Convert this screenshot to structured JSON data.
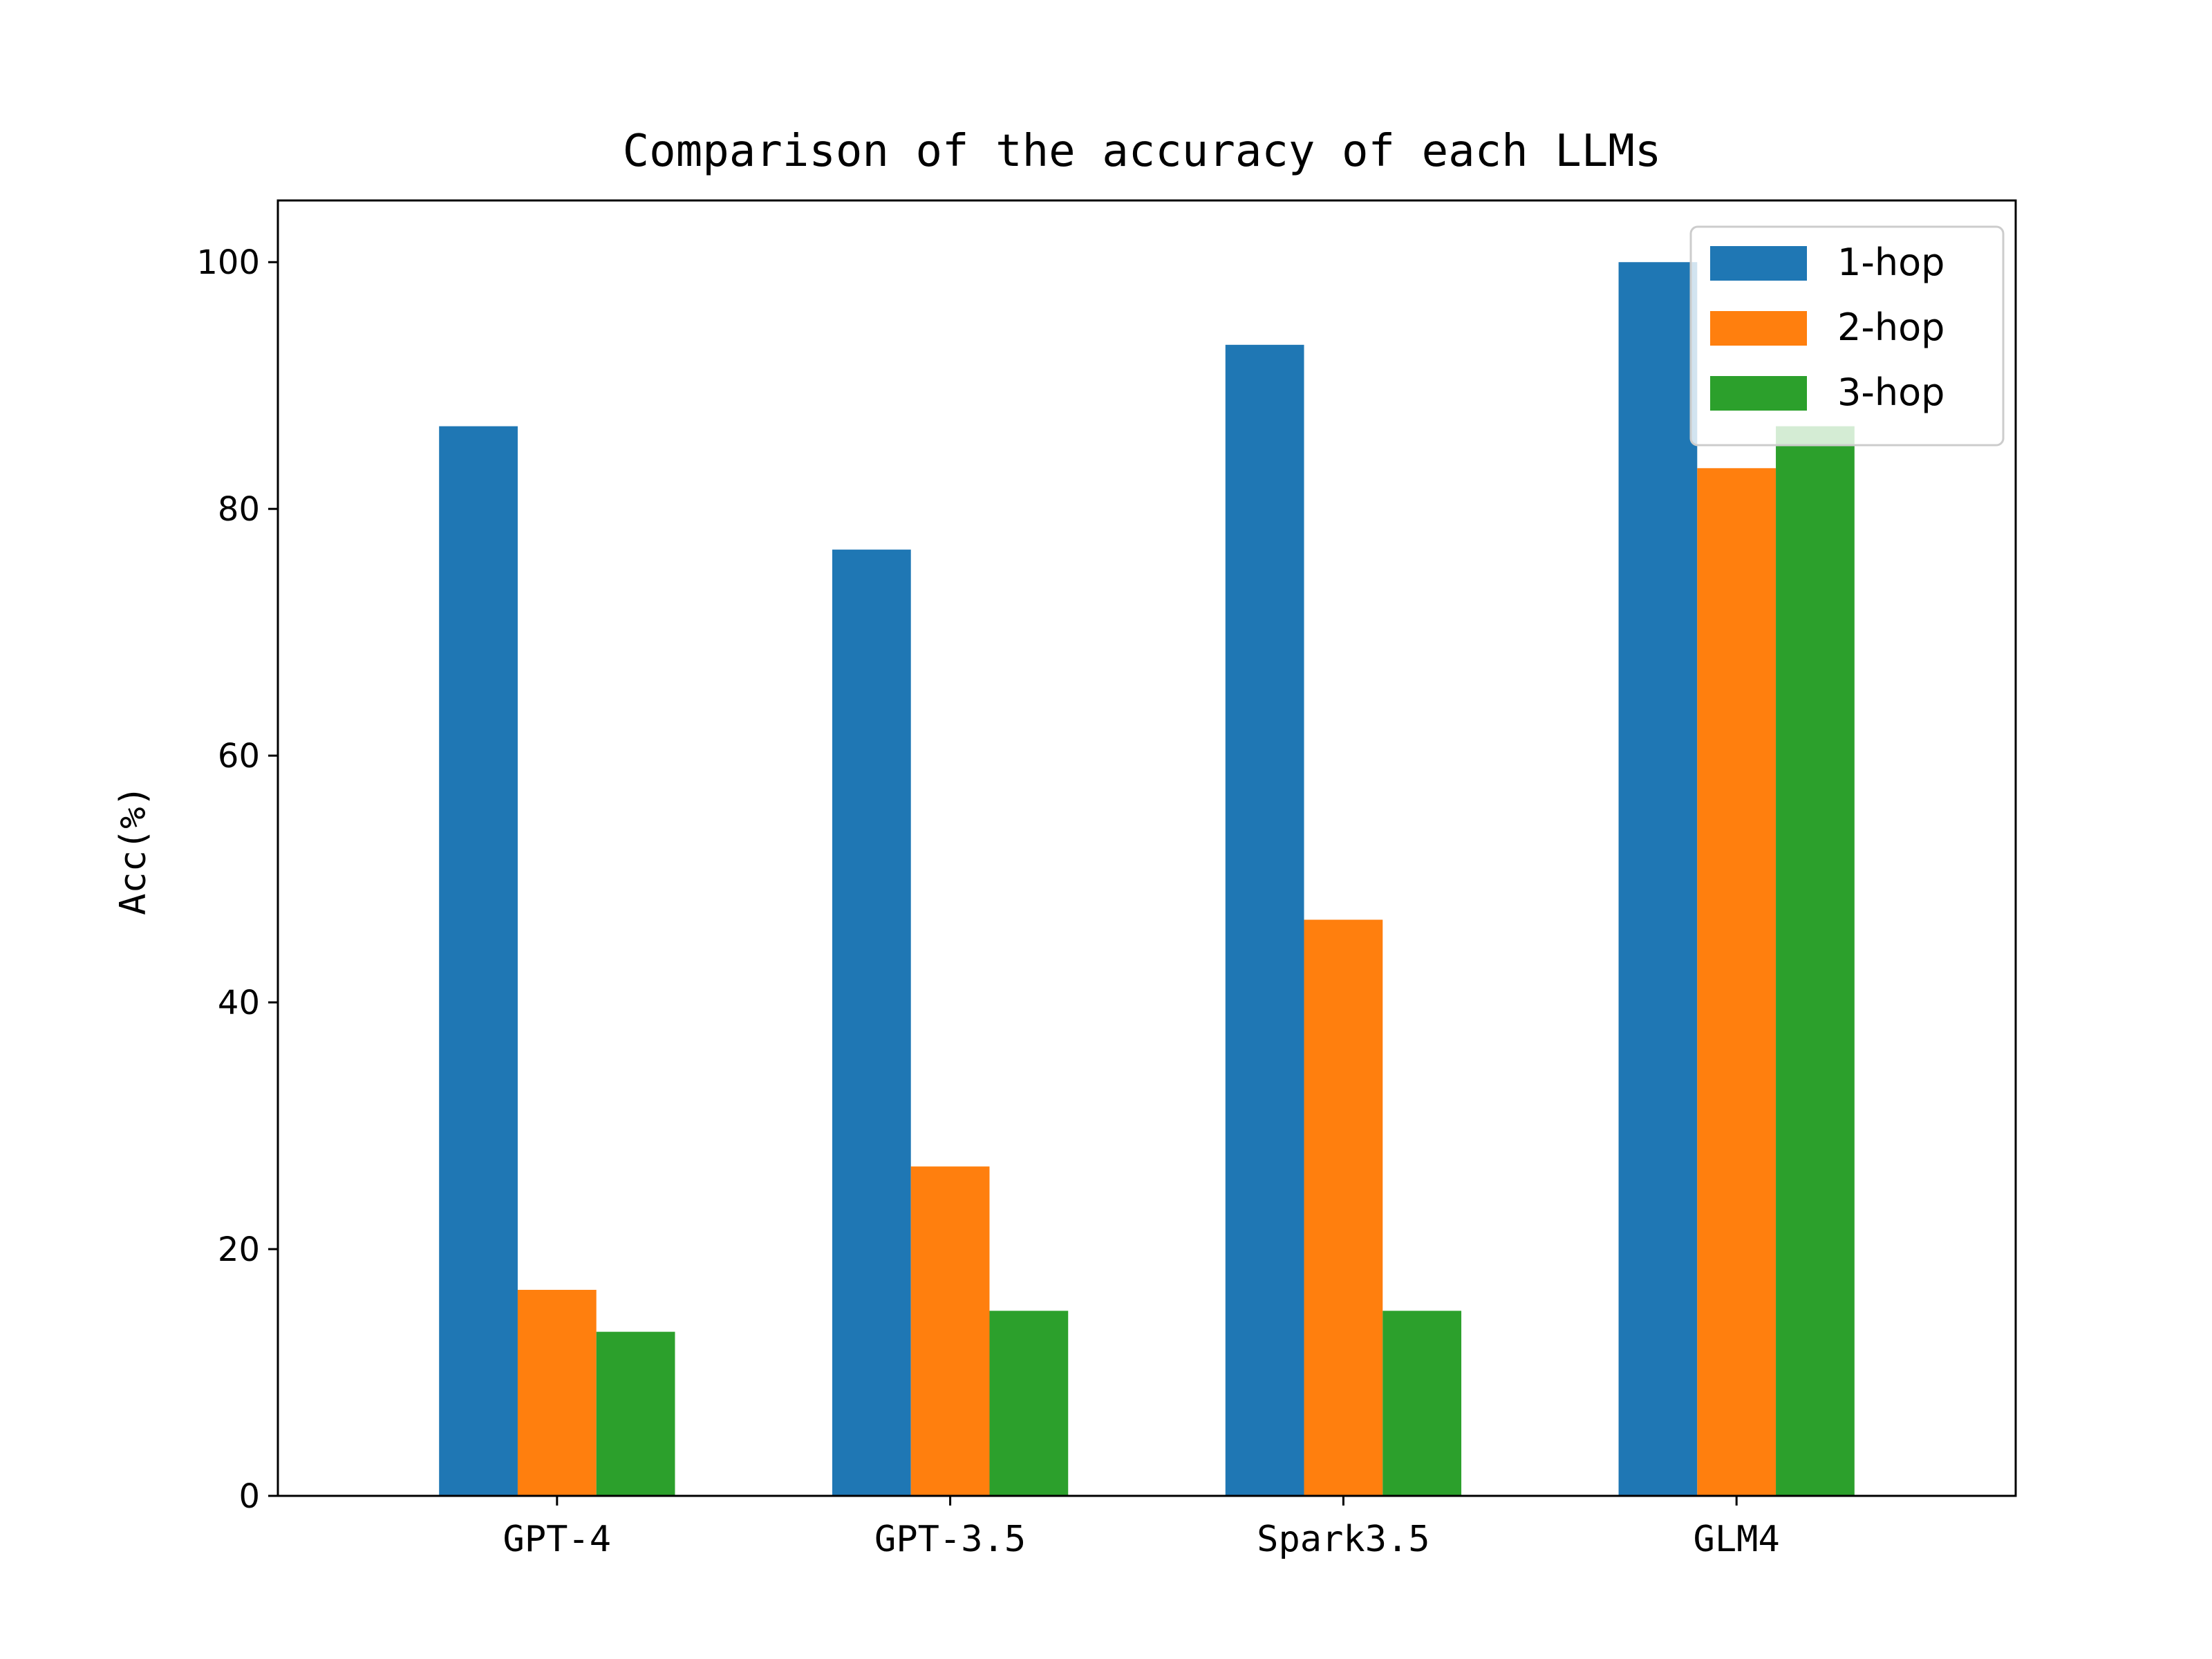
{
  "chart_data": {
    "type": "bar",
    "title": "Comparison of the accuracy of each LLMs",
    "ylabel": "Acc(%)",
    "categories": [
      "GPT-4",
      "GPT-3.5",
      "Spark3.5",
      "GLM4"
    ],
    "series": [
      {
        "name": "1-hop",
        "color": "#1f77b4",
        "values": [
          86.7,
          76.7,
          93.3,
          100.0
        ]
      },
      {
        "name": "2-hop",
        "color": "#ff7f0e",
        "values": [
          16.7,
          26.7,
          46.7,
          83.3
        ]
      },
      {
        "name": "3-hop",
        "color": "#2ca02c",
        "values": [
          13.3,
          15.0,
          15.0,
          86.7
        ]
      }
    ],
    "ylim": [
      0,
      105
    ],
    "yticks": [
      0,
      20,
      40,
      60,
      80,
      100
    ],
    "grid": false,
    "legend_position": "top-right"
  }
}
